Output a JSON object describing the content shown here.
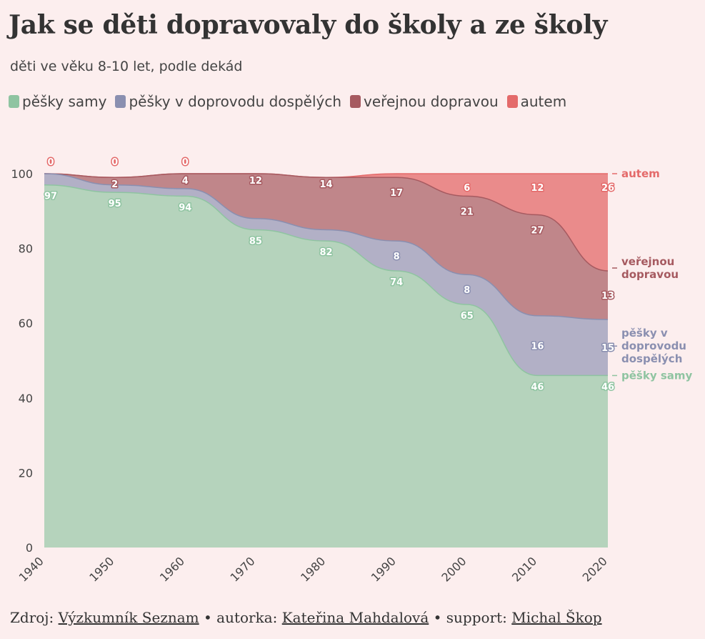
{
  "title": "Jak se děti dopravovaly do školy a ze školy",
  "subtitle": "děti ve věku 8-10 let, podle dekád",
  "legend": [
    {
      "label": "pěšky samy",
      "color": "#8fc4a1"
    },
    {
      "label": "pěšky v doprovodu dospělých",
      "color": "#8a8fb0"
    },
    {
      "label": "veřejnou dopravou",
      "color": "#a65a60"
    },
    {
      "label": "autem",
      "color": "#e46a6a"
    }
  ],
  "footer": {
    "prefix": "Zdroj: ",
    "source": "Výzkumník Seznam",
    "sep1": " • autorka: ",
    "author": "Kateřina Mahdalová",
    "sep2": " • support: ",
    "support": "Michal Škop"
  },
  "chart_data": {
    "type": "area",
    "stacked": true,
    "x": [
      1940,
      1950,
      1960,
      1970,
      1980,
      1990,
      2000,
      2010,
      2020
    ],
    "ylim": [
      0,
      100
    ],
    "yticks": [
      0,
      20,
      40,
      60,
      80,
      100
    ],
    "series": [
      {
        "name": "pěšky samy",
        "end_label": [
          "pěšky samy"
        ],
        "color": "#8fc4a1",
        "label_color": "#8fc4a1",
        "values": [
          97,
          95,
          94,
          85,
          82,
          74,
          65,
          46,
          46
        ]
      },
      {
        "name": "pěšky v doprovodu dospělých",
        "end_label": [
          "pěšky v",
          "doprovodu",
          "dospělých"
        ],
        "color": "#8a8fb0",
        "label_color": "#8a8fb0",
        "values": [
          3,
          2,
          2,
          3,
          3,
          8,
          8,
          16,
          15
        ]
      },
      {
        "name": "veřejnou dopravou",
        "end_label": [
          "veřejnou",
          "dopravou"
        ],
        "color": "#a65a60",
        "label_color": "#a65a60",
        "values": [
          0,
          2,
          4,
          12,
          14,
          17,
          21,
          27,
          13
        ]
      },
      {
        "name": "autem",
        "end_label": [
          "autem"
        ],
        "color": "#e46a6a",
        "label_color": "#e46a6a",
        "values": [
          0,
          0,
          0,
          0,
          0,
          1,
          6,
          12,
          26
        ]
      }
    ],
    "data_labels": [
      {
        "series": 0,
        "points": [
          [
            0,
            "97"
          ],
          [
            1,
            "95"
          ],
          [
            2,
            "94"
          ],
          [
            3,
            "85"
          ],
          [
            4,
            "82"
          ],
          [
            5,
            "74"
          ],
          [
            6,
            "65"
          ],
          [
            7,
            "46"
          ],
          [
            8,
            "46"
          ]
        ]
      },
      {
        "series": 1,
        "points": [
          [
            5,
            "8"
          ],
          [
            6,
            "8"
          ],
          [
            7,
            "16"
          ],
          [
            8,
            "15"
          ]
        ]
      },
      {
        "series": 2,
        "points": [
          [
            1,
            "2"
          ],
          [
            2,
            "4"
          ],
          [
            3,
            "12"
          ],
          [
            4,
            "14"
          ],
          [
            5,
            "17"
          ],
          [
            6,
            "21"
          ],
          [
            7,
            "27"
          ],
          [
            8,
            "13"
          ]
        ]
      },
      {
        "series": 3,
        "points": [
          [
            0,
            "0"
          ],
          [
            1,
            "0"
          ],
          [
            2,
            "0"
          ],
          [
            6,
            "6"
          ],
          [
            7,
            "12"
          ],
          [
            8,
            "26"
          ]
        ]
      }
    ]
  }
}
